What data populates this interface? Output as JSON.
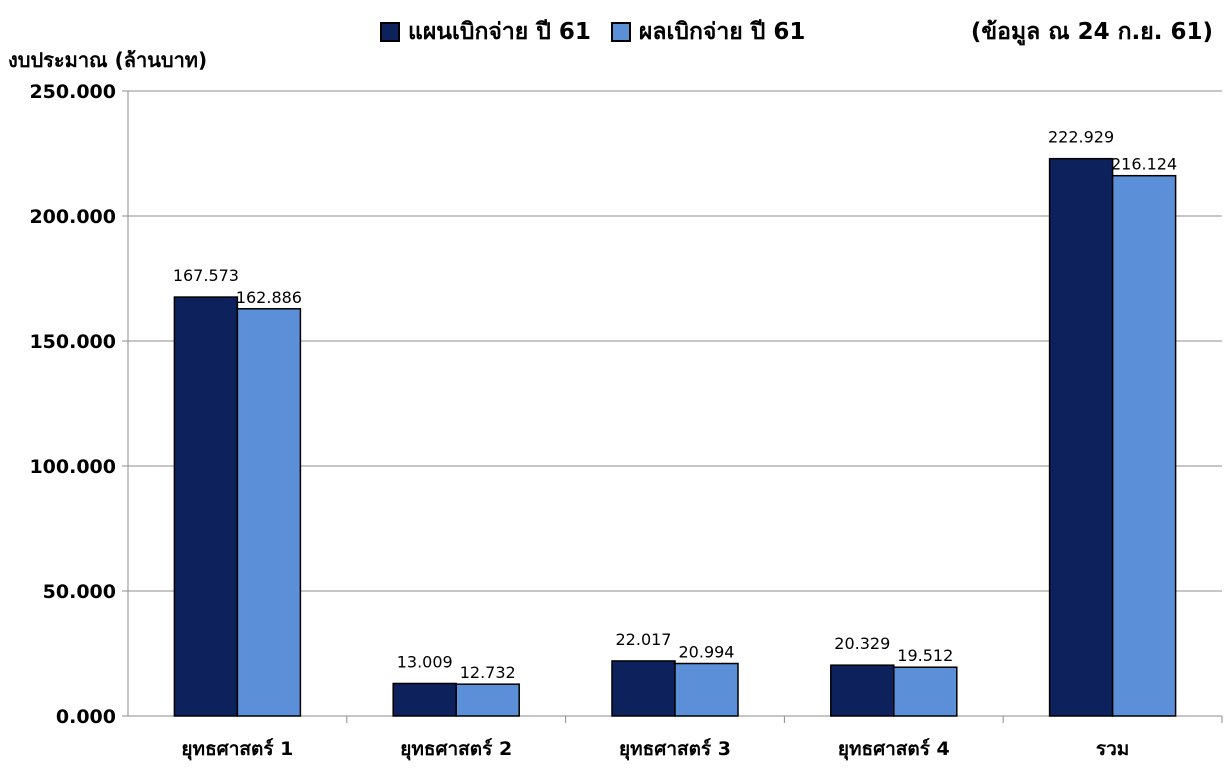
{
  "chart_data": {
    "type": "bar",
    "title": "",
    "note": "(ข้อมูล ณ 24 ก.ย. 61)",
    "xlabel": "",
    "ylabel": "งบประมาณ (ล้านบาท)",
    "ylim": [
      0,
      250
    ],
    "yticks": [
      0,
      50,
      100,
      150,
      200,
      250
    ],
    "ytick_labels": [
      "0.000",
      "50.000",
      "100.000",
      "150.000",
      "200.000",
      "250.000"
    ],
    "grid": true,
    "legend_position": "top",
    "categories": [
      "ยุทธศาสตร์ 1",
      "ยุทธศาสตร์ 2",
      "ยุทธศาสตร์ 3",
      "ยุทธศาสตร์ 4",
      "รวม"
    ],
    "series": [
      {
        "name": "แผนเบิกจ่าย ปี 61",
        "color": "#0d215d",
        "values": [
          167.573,
          13.009,
          22.017,
          20.329,
          222.929
        ],
        "labels": [
          "167.573",
          "13.009",
          "22.017",
          "20.329",
          "222.929"
        ]
      },
      {
        "name": "ผลเบิกจ่าย ปี 61",
        "color": "#5b8fd8",
        "values": [
          162.886,
          12.732,
          20.994,
          19.512,
          216.124
        ],
        "labels": [
          "162.886",
          "12.732",
          "20.994",
          "19.512",
          "216.124"
        ]
      }
    ]
  }
}
